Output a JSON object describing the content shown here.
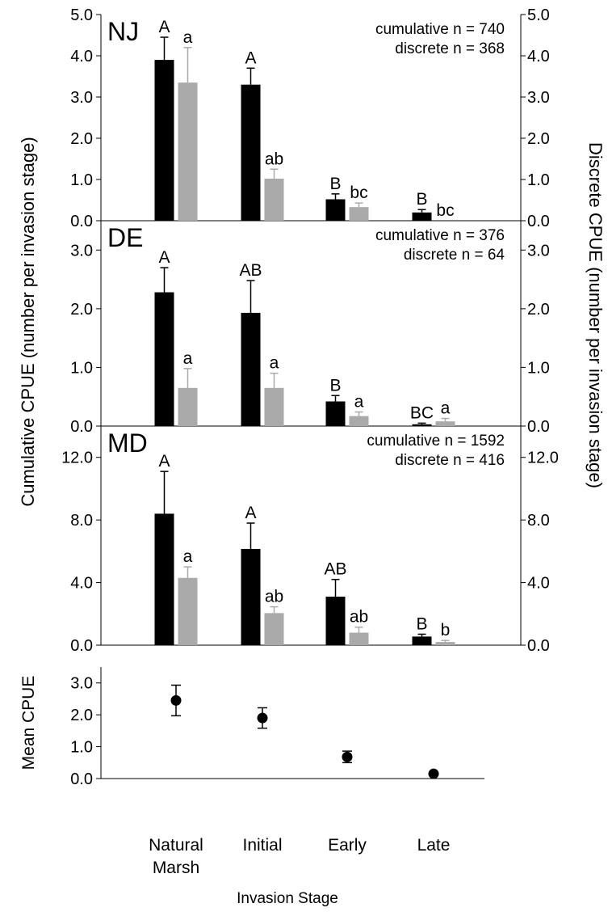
{
  "figure": {
    "left_axis_label": "Cumulative CPUE (number per invasion stage)",
    "right_axis_label": "Discrete CPUE (number per invasion stage)",
    "x_axis_label": "Invasion Stage",
    "x_tick_labels": [
      [
        "Natural",
        "Marsh"
      ],
      [
        "Initial"
      ],
      [
        "Early"
      ],
      [
        "Late"
      ]
    ],
    "colors": {
      "cumulative": "#000000",
      "discrete": "#aaaaaa",
      "axis": "#000000"
    }
  },
  "chart_data": [
    {
      "type": "bar",
      "panel_label": "NJ",
      "categories": [
        "Natural Marsh",
        "Initial",
        "Early",
        "Late"
      ],
      "ylim": [
        0,
        5
      ],
      "y_ticks": [
        "0.0",
        "1.0",
        "2.0",
        "3.0",
        "4.0",
        "5.0"
      ],
      "y_tick_values": [
        0,
        1,
        2,
        3,
        4,
        5
      ],
      "right_ticks": [
        "0.0",
        "1.0",
        "2.0",
        "3.0",
        "4.0",
        "5.0"
      ],
      "n_text": [
        "cumulative n = 740",
        "discrete n = 368"
      ],
      "series": [
        {
          "key": "cumulative",
          "values": [
            3.9,
            3.3,
            0.52,
            0.2
          ],
          "errors": [
            0.55,
            0.4,
            0.13,
            0.07
          ],
          "letters": [
            "A",
            "A",
            "B",
            "B"
          ]
        },
        {
          "key": "discrete",
          "values": [
            3.35,
            1.02,
            0.33,
            0.0
          ],
          "errors": [
            0.85,
            0.23,
            0.1,
            0.0
          ],
          "letters": [
            "a",
            "ab",
            "bc",
            "bc"
          ]
        }
      ]
    },
    {
      "type": "bar",
      "panel_label": "DE",
      "categories": [
        "Natural Marsh",
        "Initial",
        "Early",
        "Late"
      ],
      "ylim": [
        0,
        3.5
      ],
      "y_ticks": [
        "0.0",
        "1.0",
        "2.0",
        "3.0"
      ],
      "y_tick_values": [
        0,
        1,
        2,
        3
      ],
      "right_ticks": [
        "0.0",
        "1.0",
        "2.0",
        "3.0"
      ],
      "n_text": [
        "cumulative n = 376",
        "discrete n = 64"
      ],
      "series": [
        {
          "key": "cumulative",
          "values": [
            2.28,
            1.93,
            0.42,
            0.03
          ],
          "errors": [
            0.42,
            0.55,
            0.1,
            0.02
          ],
          "letters": [
            "A",
            "AB",
            "B",
            "BC"
          ]
        },
        {
          "key": "discrete",
          "values": [
            0.65,
            0.65,
            0.17,
            0.08
          ],
          "errors": [
            0.33,
            0.25,
            0.07,
            0.05
          ],
          "letters": [
            "a",
            "a",
            "a",
            "a"
          ]
        }
      ]
    },
    {
      "type": "bar",
      "panel_label": "MD",
      "categories": [
        "Natural Marsh",
        "Initial",
        "Early",
        "Late"
      ],
      "ylim": [
        0,
        14
      ],
      "y_ticks": [
        "0.0",
        "4.0",
        "8.0",
        "12.0"
      ],
      "y_tick_values": [
        0,
        4,
        8,
        12
      ],
      "right_ticks": [
        "0.0",
        "4.0",
        "8.0",
        "12.0"
      ],
      "n_text": [
        "cumulative n = 1592",
        "discrete n = 416"
      ],
      "series": [
        {
          "key": "cumulative",
          "values": [
            8.4,
            6.15,
            3.1,
            0.55
          ],
          "errors": [
            2.7,
            1.65,
            1.1,
            0.15
          ],
          "letters": [
            "A",
            "A",
            "AB",
            "B"
          ]
        },
        {
          "key": "discrete",
          "values": [
            4.3,
            2.05,
            0.8,
            0.2
          ],
          "errors": [
            0.7,
            0.4,
            0.35,
            0.1
          ],
          "letters": [
            "a",
            "ab",
            "ab",
            "b"
          ]
        }
      ]
    },
    {
      "type": "scatter",
      "categories": [
        "Natural Marsh",
        "Initial",
        "Early",
        "Late"
      ],
      "ylabel": "Mean CPUE",
      "ylim": [
        0,
        3.5
      ],
      "y_ticks": [
        "0.0",
        "1.0",
        "2.0",
        "3.0"
      ],
      "y_tick_values": [
        0,
        1,
        2,
        3
      ],
      "values": [
        2.45,
        1.9,
        0.68,
        0.15
      ],
      "errors": [
        0.48,
        0.32,
        0.18,
        0.0
      ]
    }
  ]
}
